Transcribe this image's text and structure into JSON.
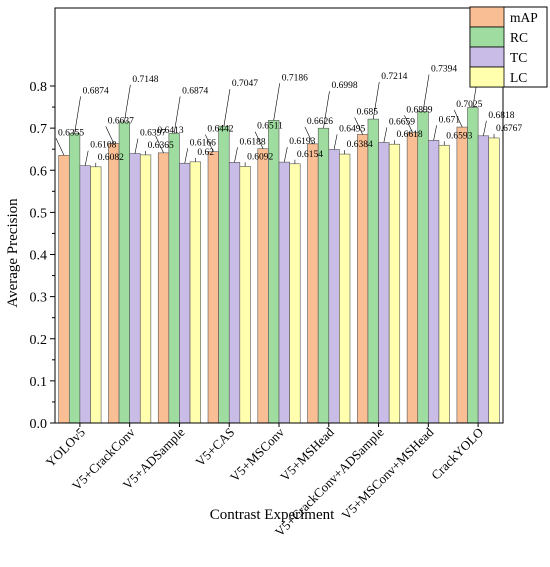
{
  "chart_data": {
    "type": "bar",
    "title": "",
    "xlabel": "Contrast Experiment",
    "ylabel": "Average Precision",
    "ylim": [
      0.0,
      0.85
    ],
    "yticks": [
      "0.0",
      "0.1",
      "0.2",
      "0.3",
      "0.4",
      "0.5",
      "0.6",
      "0.7",
      "0.8"
    ],
    "legend_position": "top-right",
    "grid": false,
    "categories": [
      "YOLOv5",
      "V5+CrackConv",
      "V5+ADSample",
      "V5+CAS",
      "V5+MSConv",
      "V5+MSHead",
      "V5+CrackConv+ADSample",
      "V5+MSConv+MSHead",
      "CrackYOLO"
    ],
    "series": [
      {
        "name": "mAP",
        "color": "#F9BE93",
        "values": [
          0.6355,
          0.6637,
          0.6413,
          0.6442,
          0.6511,
          0.6626,
          0.685,
          0.6899,
          0.7025
        ]
      },
      {
        "name": "RC",
        "color": "#9EDD9F",
        "values": [
          0.6874,
          0.7148,
          0.6874,
          0.7047,
          0.7186,
          0.6998,
          0.7214,
          0.7394,
          0.749
        ]
      },
      {
        "name": "TC",
        "color": "#C9BCE6",
        "values": [
          0.6108,
          0.6397,
          0.6166,
          0.6188,
          0.6193,
          0.6495,
          0.6659,
          0.671,
          0.6818
        ]
      },
      {
        "name": "LC",
        "color": "#FFFFAE",
        "values": [
          0.6082,
          0.6365,
          0.62,
          0.6092,
          0.6154,
          0.6384,
          0.6618,
          0.6593,
          0.6767
        ]
      }
    ],
    "data_labels": [
      [
        "0.6355",
        "0.6637",
        "0.6413",
        "0.6442",
        "0.6511",
        "0.6626",
        "0.685",
        "0.6899",
        "0.7025"
      ],
      [
        "0.6874",
        "0.7148",
        "0.6874",
        "0.7047",
        "0.7186",
        "0.6998",
        "0.7214",
        "0.7394",
        "0.749"
      ],
      [
        "0.6108",
        "0.6397",
        "0.6166",
        "0.6188",
        "0.6193",
        "0.6495",
        "0.6659",
        "0.671",
        "0.6818"
      ],
      [
        "0.6082",
        "0.6365",
        "0.62",
        "0.6092",
        "0.6154",
        "0.6384",
        "0.6618",
        "0.6593",
        "0.6767"
      ]
    ]
  }
}
